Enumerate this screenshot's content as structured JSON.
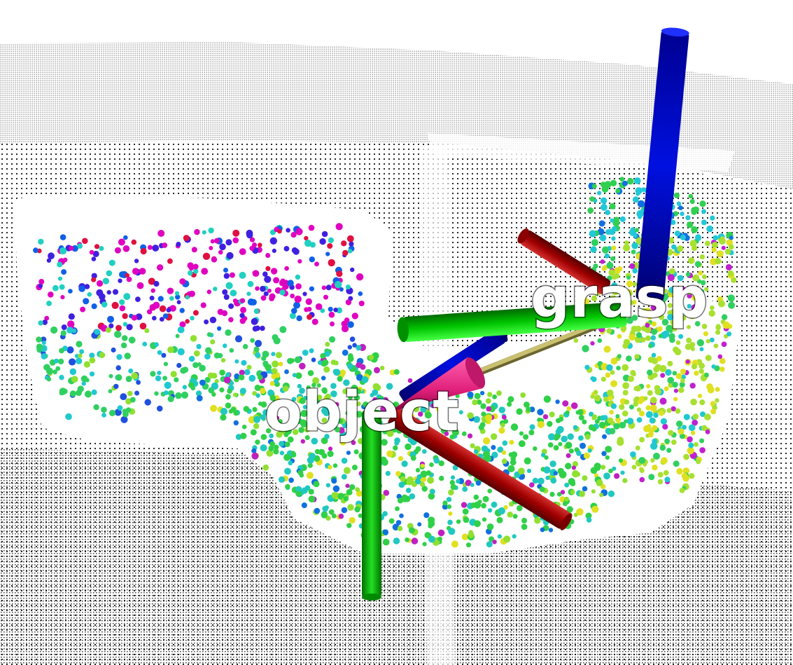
{
  "frames": {
    "object": {
      "label": "object"
    },
    "grasp": {
      "label": "grasp"
    }
  },
  "colors": {
    "axis_x": "#a80000",
    "axis_y": "#00c800",
    "axis_z": "#0000d8",
    "approach_cone": "#e0207a",
    "connector": "#b9b060",
    "cloud_dots": "#000000"
  }
}
